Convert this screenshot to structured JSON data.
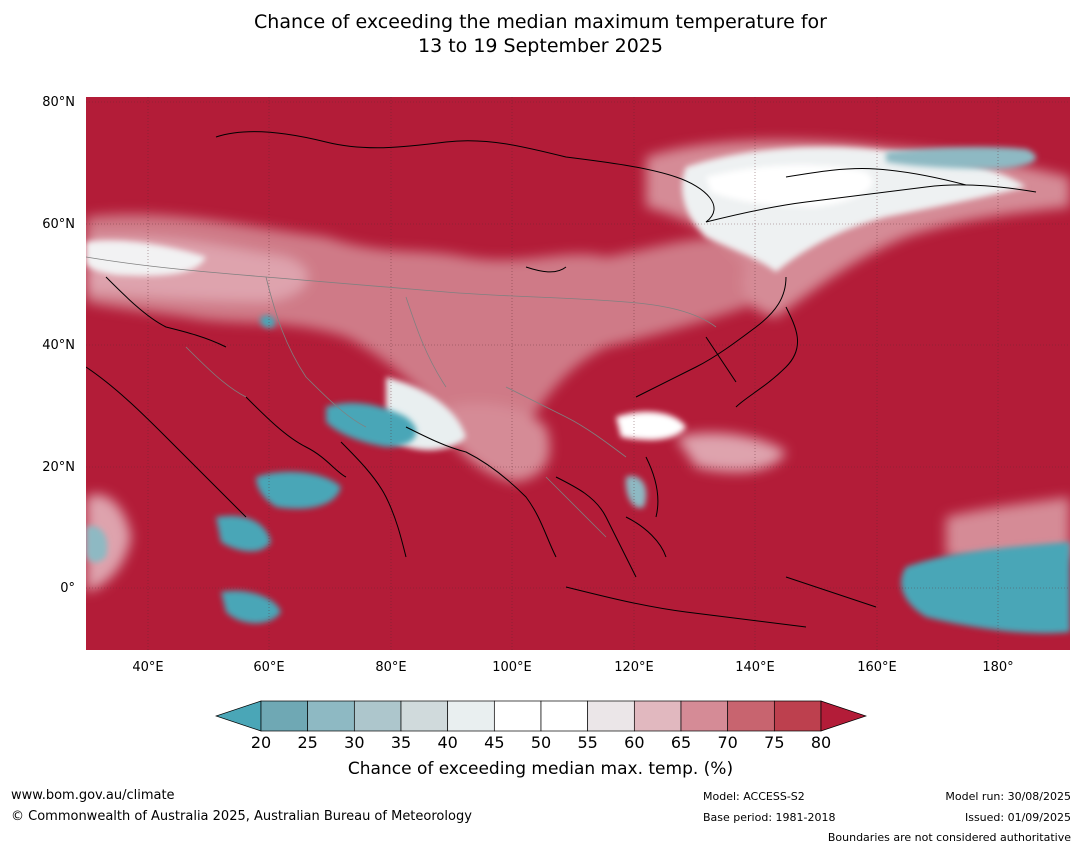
{
  "title_line1": "Chance of exceeding the median maximum temperature for",
  "title_line2": "13 to 19 September 2025",
  "map": {
    "lat_labels": [
      "80°N",
      "60°N",
      "40°N",
      "20°N",
      "0°"
    ],
    "lon_labels": [
      "40°E",
      "60°E",
      "80°E",
      "100°E",
      "120°E",
      "140°E",
      "160°E",
      "180°"
    ]
  },
  "colorbar": {
    "ticks": [
      "20",
      "25",
      "30",
      "35",
      "40",
      "45",
      "50",
      "55",
      "60",
      "65",
      "70",
      "75",
      "80"
    ],
    "colors": [
      "#4aa6b7",
      "#6fa8b4",
      "#8eb9c3",
      "#adc6cc",
      "#d0dadc",
      "#e9eff0",
      "#ffffff",
      "#ffffff",
      "#ebe6e8",
      "#e1b8bf",
      "#d58b96",
      "#c8646f",
      "#bd404e",
      "#b31c38"
    ],
    "label": "Chance of exceeding median max. temp. (%)"
  },
  "footer": {
    "website": "www.bom.gov.au/climate",
    "copyright": "© Commonwealth of Australia 2025, Australian Bureau of Meteorology",
    "model": "Model: ACCESS-S2",
    "base_period": "Base period: 1981-2018",
    "model_run": "Model run: 30/08/2025",
    "issued": "Issued: 01/09/2025",
    "disclaimer": "Boundaries are not considered authoritative"
  }
}
